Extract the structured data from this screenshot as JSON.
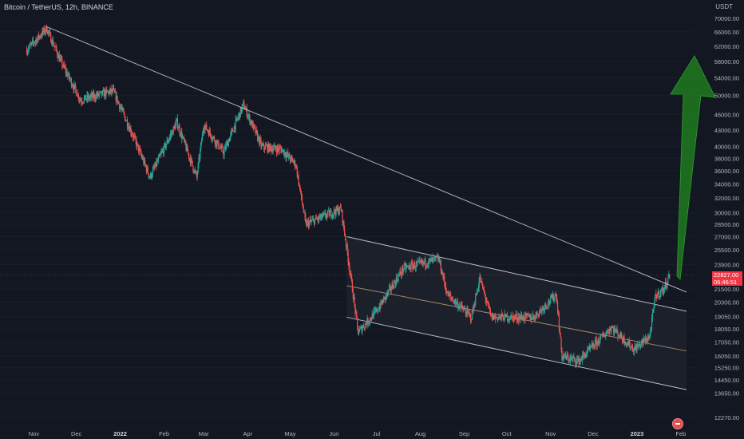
{
  "header": {
    "symbol_title": "Bitcoin / TetherUS, 12h, BINANCE",
    "currency": "USDT"
  },
  "price_badge": {
    "price": "22827.00",
    "countdown": "06:46:51",
    "color": "#f23645"
  },
  "colors": {
    "background": "#131722",
    "up_candle": "#26a69a",
    "down_candle": "#ef5350",
    "trendline": "#c8cbd4",
    "channel_fill": "#1e222d",
    "channel_mid": "#c5a07a",
    "arrow_green": "#1f7a1f"
  },
  "chart_data": {
    "type": "candlestick",
    "title": "Bitcoin / TetherUS, 12h, BINANCE",
    "y_axis": {
      "unit": "USDT",
      "scale": "log",
      "ticks": [
        12270,
        13650,
        14450,
        15250,
        16050,
        17050,
        18050,
        19050,
        20300,
        21500,
        23900,
        25500,
        27000,
        28500,
        30000,
        32000,
        34000,
        36000,
        38000,
        40000,
        43000,
        46000,
        50000,
        54000,
        58000,
        62000,
        66000,
        70000
      ],
      "tick_labels": [
        "12270.00",
        "13650.00",
        "14450.00",
        "15250.00",
        "16050.00",
        "17050.00",
        "18050.00",
        "19050.00",
        "20300.00",
        "21500.00",
        "23900.00",
        "25500.00",
        "27000.00",
        "28500.00",
        "30000.00",
        "32000.00",
        "34000.00",
        "36000.00",
        "38000.00",
        "40000.00",
        "43000.00",
        "46000.00",
        "50000.00",
        "54000.00",
        "58000.00",
        "62000.00",
        "66000.00",
        "70000.00"
      ]
    },
    "x_axis": {
      "tick_labels": [
        "Nov",
        "Dec",
        "2022",
        "Feb",
        "Mar",
        "Apr",
        "May",
        "Jun",
        "Jul",
        "Aug",
        "Sep",
        "Oct",
        "Nov",
        "Dec",
        "2023",
        "Feb"
      ],
      "bold_labels": [
        "2022",
        "2023"
      ]
    },
    "price_path": [
      {
        "date": "2021-10-27",
        "price": 61000
      },
      {
        "date": "2021-11-10",
        "price": 67000
      },
      {
        "date": "2021-11-20",
        "price": 58000
      },
      {
        "date": "2021-12-04",
        "price": 49000
      },
      {
        "date": "2021-12-27",
        "price": 51000
      },
      {
        "date": "2022-01-10",
        "price": 42000
      },
      {
        "date": "2022-01-22",
        "price": 35000
      },
      {
        "date": "2022-02-10",
        "price": 44500
      },
      {
        "date": "2022-02-24",
        "price": 35000
      },
      {
        "date": "2022-03-01",
        "price": 44000
      },
      {
        "date": "2022-03-15",
        "price": 39000
      },
      {
        "date": "2022-03-29",
        "price": 48000
      },
      {
        "date": "2022-04-11",
        "price": 40000
      },
      {
        "date": "2022-04-25",
        "price": 39500
      },
      {
        "date": "2022-05-05",
        "price": 37000
      },
      {
        "date": "2022-05-12",
        "price": 28500
      },
      {
        "date": "2022-06-06",
        "price": 30500
      },
      {
        "date": "2022-06-13",
        "price": 22500
      },
      {
        "date": "2022-06-18",
        "price": 17800
      },
      {
        "date": "2022-07-01",
        "price": 19500
      },
      {
        "date": "2022-07-20",
        "price": 23500
      },
      {
        "date": "2022-08-14",
        "price": 24500
      },
      {
        "date": "2022-08-20",
        "price": 21000
      },
      {
        "date": "2022-09-06",
        "price": 19000
      },
      {
        "date": "2022-09-12",
        "price": 22500
      },
      {
        "date": "2022-09-20",
        "price": 19000
      },
      {
        "date": "2022-10-20",
        "price": 19000
      },
      {
        "date": "2022-11-05",
        "price": 21000
      },
      {
        "date": "2022-11-09",
        "price": 16000
      },
      {
        "date": "2022-11-21",
        "price": 15700
      },
      {
        "date": "2022-12-14",
        "price": 18200
      },
      {
        "date": "2022-12-30",
        "price": 16500
      },
      {
        "date": "2023-01-10",
        "price": 17500
      },
      {
        "date": "2023-01-14",
        "price": 20800
      },
      {
        "date": "2023-01-20",
        "price": 21500
      },
      {
        "date": "2023-01-24",
        "price": 22827
      }
    ],
    "trendline": {
      "start": {
        "date": "2021-11-10",
        "price": 67500
      },
      "end": {
        "date": "2023-02-05",
        "price": 21200
      }
    },
    "channel": {
      "upper": {
        "start": {
          "date": "2022-06-10",
          "price": 27000
        },
        "end": {
          "date": "2023-02-05",
          "price": 19500
        }
      },
      "middle": {
        "start": {
          "date": "2022-06-10",
          "price": 21800
        },
        "end": {
          "date": "2023-02-05",
          "price": 16400
        }
      },
      "lower": {
        "start": {
          "date": "2022-06-10",
          "price": 19000
        },
        "end": {
          "date": "2023-02-05",
          "price": 13850
        }
      }
    },
    "last_price": 22827.0
  }
}
